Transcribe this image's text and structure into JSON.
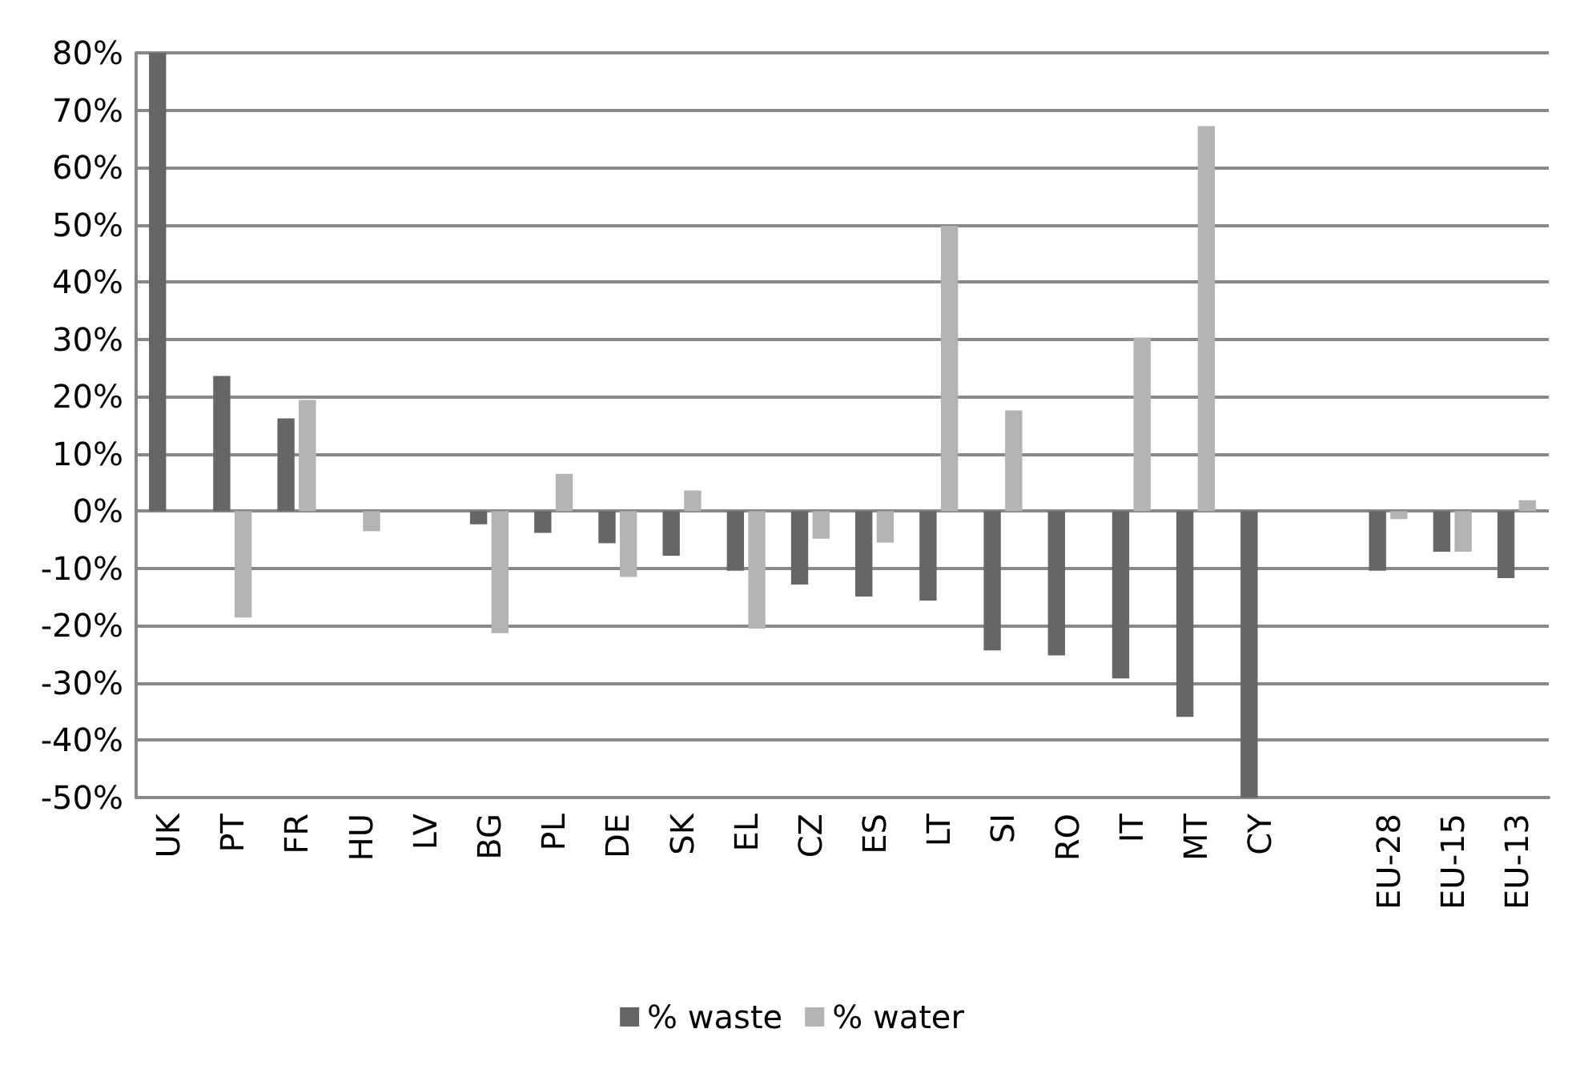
{
  "chart_data": {
    "type": "bar",
    "categories": [
      "UK",
      "PT",
      "FR",
      "HU",
      "LV",
      "BG",
      "PL",
      "DE",
      "SK",
      "EL",
      "CZ",
      "ES",
      "LT",
      "SI",
      "RO",
      "IT",
      "MT",
      "CY",
      null,
      "EU-28",
      "EU-15",
      "EU-13"
    ],
    "series": [
      {
        "name": "% waste",
        "color": "#666666",
        "values": [
          80,
          23.6,
          16.2,
          null,
          null,
          -2.3,
          -3.8,
          -5.6,
          -7.8,
          -10.4,
          -12.8,
          -14.9,
          -15.6,
          -24.3,
          -25.2,
          -29.2,
          -35.9,
          -50,
          null,
          -10.4,
          -7.1,
          -11.7
        ]
      },
      {
        "name": "% water",
        "color": "#b3b3b3",
        "values": [
          null,
          -18.6,
          19.4,
          -3.5,
          null,
          -21.3,
          6.5,
          -11.5,
          3.6,
          -20.5,
          -4.8,
          -5.5,
          49.8,
          17.6,
          null,
          30.3,
          67.2,
          null,
          null,
          -1.4,
          -7.1,
          1.9
        ]
      }
    ],
    "ylim": [
      -50,
      80
    ],
    "yticks": [
      {
        "value": -50,
        "label": "-50%"
      },
      {
        "value": -40,
        "label": "-40%"
      },
      {
        "value": -30,
        "label": "-30%"
      },
      {
        "value": -20,
        "label": "-20%"
      },
      {
        "value": -10,
        "label": "-10%"
      },
      {
        "value": 0,
        "label": "0%"
      },
      {
        "value": 10,
        "label": "10%"
      },
      {
        "value": 20,
        "label": "20%"
      },
      {
        "value": 30,
        "label": "30%"
      },
      {
        "value": 40,
        "label": "40%"
      },
      {
        "value": 50,
        "label": "50%"
      },
      {
        "value": 60,
        "label": "60%"
      },
      {
        "value": 70,
        "label": "70%"
      },
      {
        "value": 80,
        "label": "80%"
      }
    ],
    "grid": "y",
    "legend": "bottom"
  }
}
